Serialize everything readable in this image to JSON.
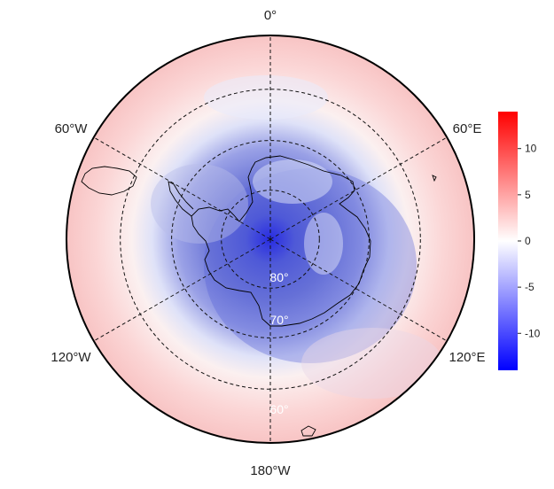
{
  "map": {
    "projection": "south-polar-stereographic",
    "boundary_latitude": -50,
    "graticule": {
      "latitudes": [
        -80,
        -70,
        -60
      ],
      "meridians_deg": [
        0,
        60,
        120,
        180,
        240,
        300
      ],
      "style": "dashed"
    }
  },
  "lon_labels": {
    "top": "0°",
    "upper_left": "60°W",
    "upper_right": "60°E",
    "lower_left": "120°W",
    "lower_right": "120°E",
    "bottom": "180°W"
  },
  "lat_labels": [
    "80°",
    "70°",
    "60°"
  ],
  "colorbar": {
    "min": -14,
    "max": 14,
    "ticks": [
      "10",
      "5",
      "0",
      "-5",
      "-10"
    ],
    "tick_values": [
      10,
      5,
      0,
      -5,
      -10
    ],
    "colors": {
      "low": "#0000ff",
      "mid": "#ffffff",
      "high": "#ff0000"
    }
  }
}
